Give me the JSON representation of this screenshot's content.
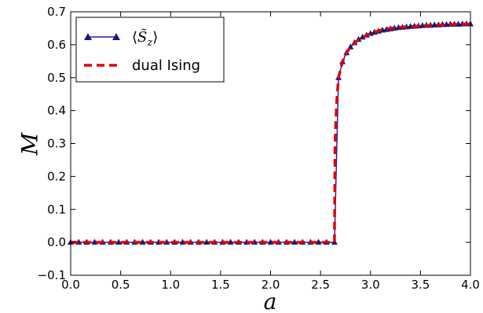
{
  "chart_data": {
    "type": "line",
    "xlabel": "a",
    "ylabel": "M",
    "xlim": [
      0.0,
      4.0
    ],
    "ylim": [
      -0.1,
      0.7
    ],
    "x_ticks": [
      "0.0",
      "0.5",
      "1.0",
      "1.5",
      "2.0",
      "2.5",
      "3.0",
      "3.5",
      "4.0"
    ],
    "y_ticks": [
      "−0.1",
      "0.0",
      "0.1",
      "0.2",
      "0.3",
      "0.4",
      "0.5",
      "0.6",
      "0.7"
    ],
    "grid": false,
    "legend_position": "top-left",
    "transition_a": 2.64,
    "series": [
      {
        "name_open": "⟨",
        "name_symbol": "S̃",
        "name_sub": "z",
        "name_close": "⟩",
        "color": "#1f1fa8",
        "marker_color": "#1a1a7a",
        "style": "solid-triangle-markers",
        "x": [
          0.0,
          0.08,
          0.16,
          0.24,
          0.32,
          0.4,
          0.48,
          0.56,
          0.64,
          0.72,
          0.8,
          0.88,
          0.96,
          1.04,
          1.12,
          1.2,
          1.28,
          1.36,
          1.44,
          1.52,
          1.6,
          1.68,
          1.76,
          1.84,
          1.92,
          2.0,
          2.08,
          2.16,
          2.24,
          2.32,
          2.4,
          2.48,
          2.56,
          2.64,
          2.68,
          2.72,
          2.76,
          2.8,
          2.84,
          2.88,
          2.92,
          2.96,
          3.0,
          3.04,
          3.08,
          3.12,
          3.16,
          3.2,
          3.24,
          3.28,
          3.32,
          3.36,
          3.4,
          3.44,
          3.48,
          3.52,
          3.56,
          3.6,
          3.64,
          3.68,
          3.72,
          3.76,
          3.8,
          3.84,
          3.88,
          3.92,
          3.96,
          4.0
        ],
        "y": [
          0.0,
          0.0,
          0.0,
          0.0,
          0.0,
          0.0,
          0.0,
          0.0,
          0.0,
          0.0,
          0.0,
          0.0,
          0.0,
          0.0,
          0.0,
          0.0,
          0.0,
          0.0,
          0.0,
          0.0,
          0.0,
          0.0,
          0.0,
          0.0,
          0.0,
          0.0,
          0.0,
          0.0,
          0.0,
          0.0,
          0.0,
          0.0,
          0.0,
          0.0,
          0.5,
          0.548,
          0.575,
          0.593,
          0.606,
          0.616,
          0.623,
          0.629,
          0.634,
          0.638,
          0.641,
          0.644,
          0.646,
          0.648,
          0.65,
          0.652,
          0.653,
          0.654,
          0.655,
          0.656,
          0.657,
          0.658,
          0.659,
          0.659,
          0.66,
          0.66,
          0.661,
          0.661,
          0.662,
          0.662,
          0.662,
          0.663,
          0.663,
          0.663
        ]
      },
      {
        "name": "dual Ising",
        "color": "#e00000",
        "style": "dashed",
        "x": [
          0.0,
          0.5,
          1.0,
          1.5,
          2.0,
          2.5,
          2.64,
          2.645,
          2.66,
          2.68,
          2.72,
          2.76,
          2.8,
          2.85,
          2.9,
          3.0,
          3.1,
          3.2,
          3.3,
          3.4,
          3.5,
          3.6,
          3.7,
          3.8,
          3.9,
          4.0
        ],
        "y": [
          0.0,
          0.0,
          0.0,
          0.0,
          0.0,
          0.0,
          0.0,
          0.3,
          0.42,
          0.5,
          0.548,
          0.575,
          0.593,
          0.608,
          0.619,
          0.634,
          0.644,
          0.65,
          0.653,
          0.655,
          0.657,
          0.659,
          0.66,
          0.661,
          0.662,
          0.663
        ]
      }
    ]
  }
}
